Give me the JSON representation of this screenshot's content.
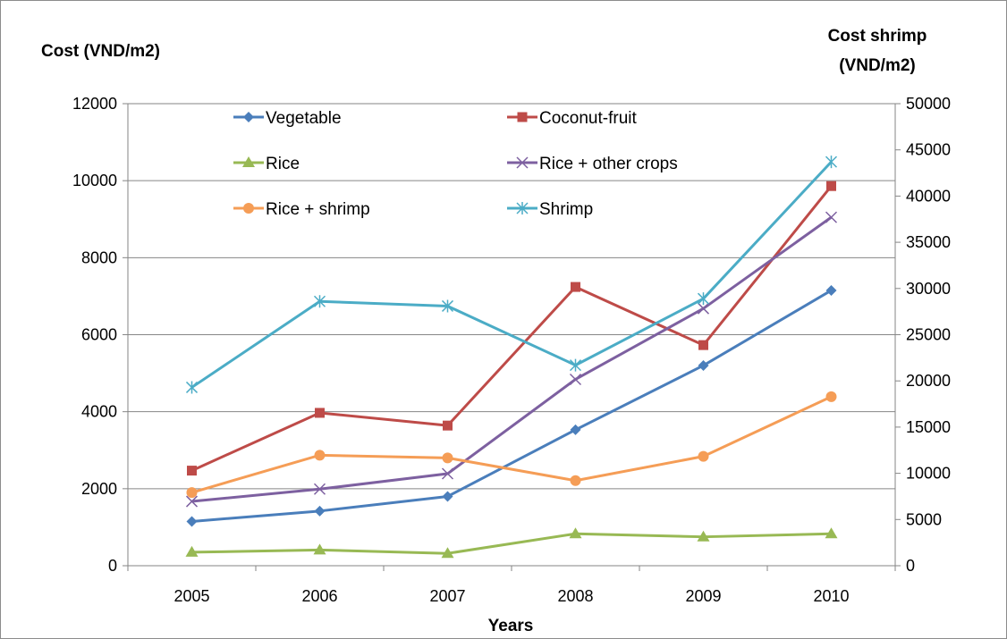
{
  "chart_data": {
    "type": "line",
    "categories": [
      "2005",
      "2006",
      "2007",
      "2008",
      "2009",
      "2010"
    ],
    "xlabel": "Years",
    "ylabel": "Cost (VND/m2)",
    "ylabel_right": [
      "Cost shrimp",
      "(VND/m2)"
    ],
    "ylim": [
      0,
      12000
    ],
    "yticks": [
      0,
      2000,
      4000,
      6000,
      8000,
      10000,
      12000
    ],
    "ylim_right": [
      0,
      50000
    ],
    "yticks_right": [
      0,
      5000,
      10000,
      15000,
      20000,
      25000,
      30000,
      35000,
      40000,
      45000,
      50000
    ],
    "grid": "horizontal",
    "legend_position": "top",
    "series": [
      {
        "name": "Vegetable",
        "axis": "left",
        "color": "#4a7ebb",
        "marker": "diamond",
        "values": [
          1150,
          1420,
          1800,
          3530,
          5200,
          7150
        ]
      },
      {
        "name": "Coconut-fruit",
        "axis": "left",
        "color": "#be4b48",
        "marker": "square",
        "values": [
          2470,
          3970,
          3640,
          7240,
          5730,
          9860
        ]
      },
      {
        "name": "Rice",
        "axis": "left",
        "color": "#98b954",
        "marker": "triangle",
        "values": [
          350,
          410,
          320,
          830,
          750,
          830
        ]
      },
      {
        "name": "Rice + other crops",
        "axis": "left",
        "color": "#7d60a0",
        "marker": "x",
        "values": [
          1670,
          1990,
          2390,
          4840,
          6680,
          9050
        ]
      },
      {
        "name": "Rice + shrimp",
        "axis": "left",
        "color": "#f59d56",
        "marker": "circle",
        "values": [
          1900,
          2870,
          2800,
          2210,
          2840,
          4390
        ]
      },
      {
        "name": "Shrimp",
        "axis": "right",
        "color": "#4bacc6",
        "marker": "star",
        "values": [
          19300,
          28600,
          28100,
          21700,
          28900,
          43700
        ]
      }
    ]
  }
}
